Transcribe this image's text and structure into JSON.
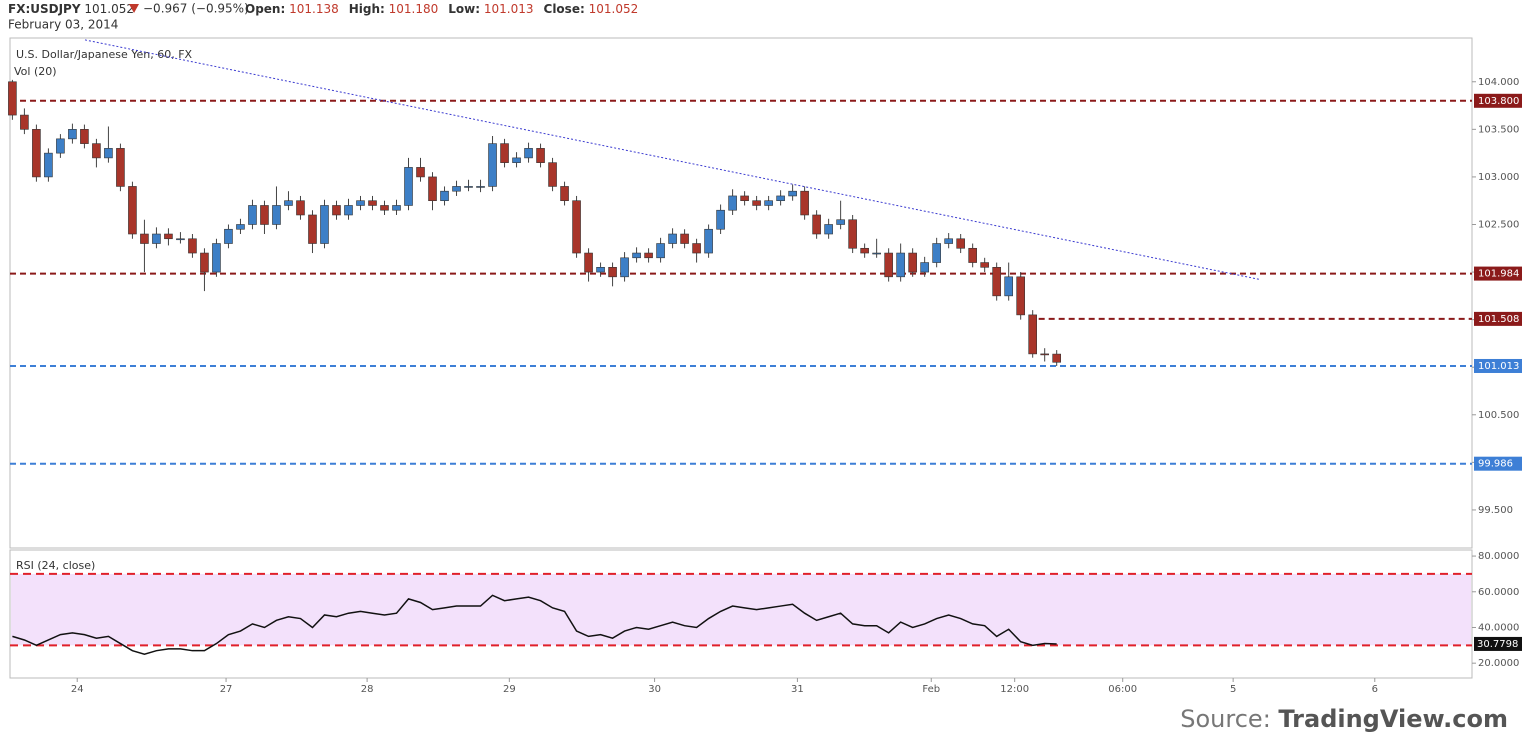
{
  "chart_data": {
    "type": "candlestick",
    "header": {
      "symbol": "FX:USDJPY",
      "last": "101.052",
      "change": "−0.967 (−0.95%)",
      "fields": [
        {
          "label": "Open:",
          "value": "101.138"
        },
        {
          "label": "High:",
          "value": "101.180"
        },
        {
          "label": "Low:",
          "value": "101.013"
        },
        {
          "label": "Close:",
          "value": "101.052"
        }
      ],
      "date": "February 03, 2014"
    },
    "title": "U.S. Dollar/Japanese Yen, 60, FX",
    "volume_label": "Vol (20)",
    "up_color": "#3d7fc6",
    "down_color": "#a8352a",
    "candles": [
      [
        104.0,
        104.02,
        103.6,
        103.65
      ],
      [
        103.65,
        103.72,
        103.45,
        103.5
      ],
      [
        103.5,
        103.55,
        102.95,
        103.0
      ],
      [
        103.0,
        103.3,
        102.95,
        103.25
      ],
      [
        103.25,
        103.45,
        103.2,
        103.4
      ],
      [
        103.4,
        103.56,
        103.35,
        103.5
      ],
      [
        103.5,
        103.55,
        103.3,
        103.35
      ],
      [
        103.35,
        103.4,
        103.1,
        103.2
      ],
      [
        103.2,
        103.53,
        103.15,
        103.3
      ],
      [
        103.3,
        103.35,
        102.85,
        102.9
      ],
      [
        102.9,
        102.95,
        102.35,
        102.4
      ],
      [
        102.4,
        102.55,
        102.0,
        102.3
      ],
      [
        102.3,
        102.47,
        102.25,
        102.4
      ],
      [
        102.4,
        102.46,
        102.28,
        102.35
      ],
      [
        102.35,
        102.42,
        102.3,
        102.35
      ],
      [
        102.35,
        102.4,
        102.15,
        102.2
      ],
      [
        102.2,
        102.25,
        101.8,
        102.0
      ],
      [
        102.0,
        102.35,
        101.95,
        102.3
      ],
      [
        102.3,
        102.5,
        102.25,
        102.45
      ],
      [
        102.45,
        102.56,
        102.4,
        102.5
      ],
      [
        102.5,
        102.76,
        102.45,
        102.7
      ],
      [
        102.7,
        102.75,
        102.4,
        102.5
      ],
      [
        102.5,
        102.9,
        102.45,
        102.7
      ],
      [
        102.7,
        102.85,
        102.65,
        102.75
      ],
      [
        102.75,
        102.8,
        102.55,
        102.6
      ],
      [
        102.6,
        102.65,
        102.2,
        102.3
      ],
      [
        102.3,
        102.76,
        102.25,
        102.7
      ],
      [
        102.7,
        102.75,
        102.55,
        102.6
      ],
      [
        102.6,
        102.77,
        102.55,
        102.7
      ],
      [
        102.7,
        102.8,
        102.65,
        102.75
      ],
      [
        102.75,
        102.8,
        102.65,
        102.7
      ],
      [
        102.7,
        102.75,
        102.6,
        102.65
      ],
      [
        102.65,
        102.76,
        102.6,
        102.7
      ],
      [
        102.7,
        103.2,
        102.65,
        103.1
      ],
      [
        103.1,
        103.2,
        102.95,
        103.0
      ],
      [
        103.0,
        103.05,
        102.65,
        102.75
      ],
      [
        102.75,
        102.9,
        102.7,
        102.85
      ],
      [
        102.85,
        102.96,
        102.8,
        102.9
      ],
      [
        102.9,
        102.97,
        102.85,
        102.9
      ],
      [
        102.9,
        102.97,
        102.84,
        102.9
      ],
      [
        102.9,
        103.43,
        102.85,
        103.35
      ],
      [
        103.35,
        103.4,
        103.1,
        103.15
      ],
      [
        103.15,
        103.26,
        103.1,
        103.2
      ],
      [
        103.2,
        103.36,
        103.15,
        103.3
      ],
      [
        103.3,
        103.35,
        103.1,
        103.15
      ],
      [
        103.15,
        103.2,
        102.85,
        102.9
      ],
      [
        102.9,
        102.95,
        102.7,
        102.75
      ],
      [
        102.75,
        102.8,
        102.15,
        102.2
      ],
      [
        102.2,
        102.25,
        101.9,
        102.0
      ],
      [
        102.0,
        102.1,
        101.95,
        102.05
      ],
      [
        102.05,
        102.1,
        101.85,
        101.95
      ],
      [
        101.95,
        102.21,
        101.9,
        102.15
      ],
      [
        102.15,
        102.26,
        102.1,
        102.2
      ],
      [
        102.2,
        102.25,
        102.1,
        102.15
      ],
      [
        102.15,
        102.36,
        102.1,
        102.3
      ],
      [
        102.3,
        102.46,
        102.25,
        102.4
      ],
      [
        102.4,
        102.45,
        102.25,
        102.3
      ],
      [
        102.3,
        102.35,
        102.1,
        102.2
      ],
      [
        102.2,
        102.5,
        102.15,
        102.45
      ],
      [
        102.45,
        102.71,
        102.4,
        102.65
      ],
      [
        102.65,
        102.87,
        102.6,
        102.8
      ],
      [
        102.8,
        102.85,
        102.7,
        102.75
      ],
      [
        102.75,
        102.8,
        102.65,
        102.7
      ],
      [
        102.7,
        102.8,
        102.65,
        102.75
      ],
      [
        102.75,
        102.86,
        102.7,
        102.8
      ],
      [
        102.8,
        102.92,
        102.75,
        102.85
      ],
      [
        102.85,
        102.9,
        102.55,
        102.6
      ],
      [
        102.6,
        102.65,
        102.35,
        102.4
      ],
      [
        102.4,
        102.56,
        102.35,
        102.5
      ],
      [
        102.5,
        102.75,
        102.45,
        102.55
      ],
      [
        102.55,
        102.6,
        102.2,
        102.25
      ],
      [
        102.25,
        102.3,
        102.15,
        102.2
      ],
      [
        102.2,
        102.35,
        102.15,
        102.2
      ],
      [
        102.2,
        102.25,
        101.9,
        101.95
      ],
      [
        101.95,
        102.3,
        101.9,
        102.2
      ],
      [
        102.2,
        102.25,
        101.95,
        102.0
      ],
      [
        102.0,
        102.16,
        101.95,
        102.1
      ],
      [
        102.1,
        102.36,
        102.05,
        102.3
      ],
      [
        102.3,
        102.41,
        102.25,
        102.35
      ],
      [
        102.35,
        102.4,
        102.2,
        102.25
      ],
      [
        102.25,
        102.3,
        102.05,
        102.1
      ],
      [
        102.1,
        102.15,
        102.0,
        102.05
      ],
      [
        102.05,
        102.1,
        101.7,
        101.75
      ],
      [
        101.75,
        102.1,
        101.7,
        101.95
      ],
      [
        101.95,
        102.0,
        101.5,
        101.55
      ],
      [
        101.55,
        101.6,
        101.1,
        101.14
      ],
      [
        101.14,
        101.2,
        101.06,
        101.138
      ],
      [
        101.138,
        101.18,
        101.013,
        101.052
      ]
    ],
    "xlim": [
      -0.2,
      121.6
    ],
    "xticks": [
      {
        "value": 5.4,
        "label": "24"
      },
      {
        "value": 17.8,
        "label": "27"
      },
      {
        "value": 29.55,
        "label": "28"
      },
      {
        "value": 41.4,
        "label": "29"
      },
      {
        "value": 53.5,
        "label": "30"
      },
      {
        "value": 65.4,
        "label": "31"
      },
      {
        "value": 76.55,
        "label": "Feb"
      },
      {
        "value": 83.5,
        "label": "12:00"
      },
      {
        "value": 92.5,
        "label": "06:00"
      },
      {
        "value": 101.7,
        "label": "5"
      },
      {
        "value": 113.5,
        "label": "6"
      }
    ],
    "ylim": [
      99.1,
      104.46
    ],
    "yticks": [
      {
        "value": 99.5,
        "label": "99.500"
      },
      {
        "value": 100.0,
        "label": "100.000"
      },
      {
        "value": 100.5,
        "label": "100.500"
      },
      {
        "value": 101.0,
        "label": "101.000"
      },
      {
        "value": 101.5,
        "label": "101.500"
      },
      {
        "value": 102.0,
        "label": "102.000"
      },
      {
        "value": 102.5,
        "label": "102.500"
      },
      {
        "value": 103.0,
        "label": "103.000"
      },
      {
        "value": 103.5,
        "label": "103.500"
      },
      {
        "value": 104.0,
        "label": "104.000"
      }
    ],
    "levels": [
      {
        "value": 103.8,
        "label": "103.800",
        "color": "#8b1a1a"
      },
      {
        "value": 101.984,
        "label": "101.984",
        "color": "#8b1a1a"
      },
      {
        "value": 101.508,
        "label": "101.508",
        "color": "#8b1a1a",
        "start": 85.5
      },
      {
        "value": 101.013,
        "label": "101.013",
        "color": "#3d7fd6"
      },
      {
        "value": 99.986,
        "label": "99.986",
        "color": "#3d7fd6"
      }
    ],
    "trendline": {
      "color": "#3b3bd0",
      "x": [
        6.05,
        104
      ],
      "y": [
        104.44,
        101.92
      ]
    },
    "rsi": {
      "label": "RSI (24, close)",
      "values": [
        35,
        33,
        30,
        33,
        36,
        37,
        36,
        34,
        35,
        31,
        27,
        25,
        27,
        28,
        28,
        27,
        27,
        31,
        36,
        38,
        42,
        40,
        44,
        46,
        45,
        40,
        47,
        46,
        48,
        49,
        48,
        47,
        48,
        56,
        54,
        50,
        51,
        52,
        52,
        52,
        58,
        55,
        56,
        57,
        55,
        51,
        49,
        38,
        35,
        36,
        34,
        38,
        40,
        39,
        41,
        43,
        41,
        40,
        45,
        49,
        52,
        51,
        50,
        51,
        52,
        53,
        48,
        44,
        46,
        48,
        42,
        41,
        41,
        37,
        43,
        40,
        42,
        45,
        47,
        45,
        42,
        41,
        35,
        39,
        32,
        30,
        31,
        30.7798
      ],
      "last_label": "30.7798",
      "ylim": [
        11.7,
        83.4
      ],
      "yticks": [
        {
          "value": 20,
          "label": "20.0000"
        },
        {
          "value": 40,
          "label": "40.0000"
        },
        {
          "value": 60,
          "label": "60.0000"
        },
        {
          "value": 80,
          "label": "80.0000"
        }
      ],
      "levels": [
        70,
        30
      ],
      "band_color": "#f3e1fb",
      "level_color": "#e0202a"
    },
    "source": {
      "prefix": "Source:",
      "name": "TradingView.com"
    }
  }
}
